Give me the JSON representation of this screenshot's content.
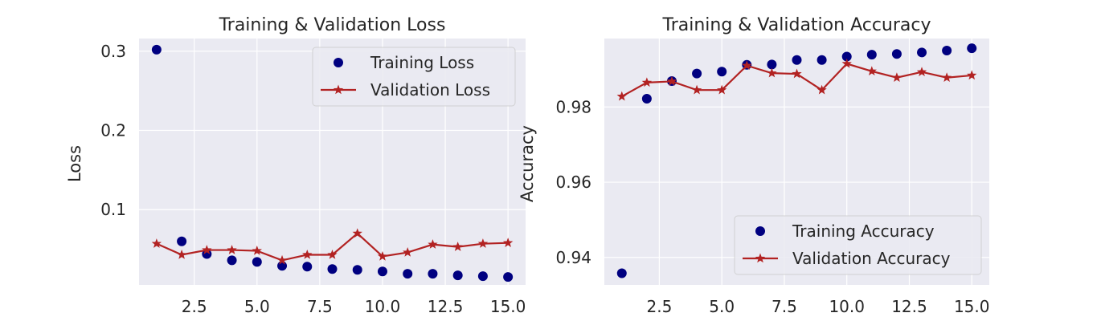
{
  "chart_data": [
    {
      "type": "line",
      "title": "Training & Validation Loss",
      "xlabel": "",
      "ylabel": "Loss",
      "xlim": [
        0.3,
        15.7
      ],
      "ylim": [
        0.005,
        0.316
      ],
      "xticks": [
        2.5,
        5.0,
        7.5,
        10.0,
        12.5,
        15.0
      ],
      "xtick_labels": [
        "2.5",
        "5.0",
        "7.5",
        "10.0",
        "12.5",
        "15.0"
      ],
      "yticks": [
        0.1,
        0.2,
        0.3
      ],
      "ytick_labels": [
        "0.1",
        "0.2",
        "0.3"
      ],
      "grid": true,
      "legend_position": "top-right",
      "x": [
        1,
        2,
        3,
        4,
        5,
        6,
        7,
        8,
        9,
        10,
        11,
        12,
        13,
        14,
        15
      ],
      "series": [
        {
          "name": "Training Loss",
          "style": "markers",
          "marker": "circle",
          "color": "#000080",
          "values": [
            0.302,
            0.06,
            0.044,
            0.036,
            0.034,
            0.029,
            0.028,
            0.025,
            0.024,
            0.022,
            0.019,
            0.019,
            0.017,
            0.016,
            0.015
          ]
        },
        {
          "name": "Validation Loss",
          "style": "line",
          "marker": "star",
          "color": "#b22222",
          "values": [
            0.057,
            0.043,
            0.049,
            0.049,
            0.048,
            0.036,
            0.043,
            0.043,
            0.07,
            0.041,
            0.046,
            0.056,
            0.053,
            0.057,
            0.058
          ]
        }
      ]
    },
    {
      "type": "line",
      "title": "Training & Validation Accuracy",
      "xlabel": "",
      "ylabel": "Accuracy",
      "xlim": [
        0.3,
        15.7
      ],
      "ylim": [
        0.9327,
        0.9982
      ],
      "xticks": [
        2.5,
        5.0,
        7.5,
        10.0,
        12.5,
        15.0
      ],
      "xtick_labels": [
        "2.5",
        "5.0",
        "7.5",
        "10.0",
        "12.5",
        "15.0"
      ],
      "yticks": [
        0.94,
        0.96,
        0.98
      ],
      "ytick_labels": [
        "0.94",
        "0.96",
        "0.98"
      ],
      "grid": true,
      "legend_position": "bottom-right",
      "x": [
        1,
        2,
        3,
        4,
        5,
        6,
        7,
        8,
        9,
        10,
        11,
        12,
        13,
        14,
        15
      ],
      "series": [
        {
          "name": "Training Accuracy",
          "style": "markers",
          "marker": "circle",
          "color": "#000080",
          "values": [
            0.9358,
            0.9822,
            0.9869,
            0.9889,
            0.9894,
            0.9912,
            0.9913,
            0.9925,
            0.9925,
            0.9934,
            0.9939,
            0.9941,
            0.9945,
            0.995,
            0.9956
          ]
        },
        {
          "name": "Validation Accuracy",
          "style": "line",
          "marker": "star",
          "color": "#b22222",
          "values": [
            0.9828,
            0.9865,
            0.9868,
            0.9845,
            0.9845,
            0.991,
            0.989,
            0.9888,
            0.9845,
            0.9915,
            0.9895,
            0.9878,
            0.9893,
            0.9878,
            0.9884
          ]
        }
      ]
    }
  ]
}
